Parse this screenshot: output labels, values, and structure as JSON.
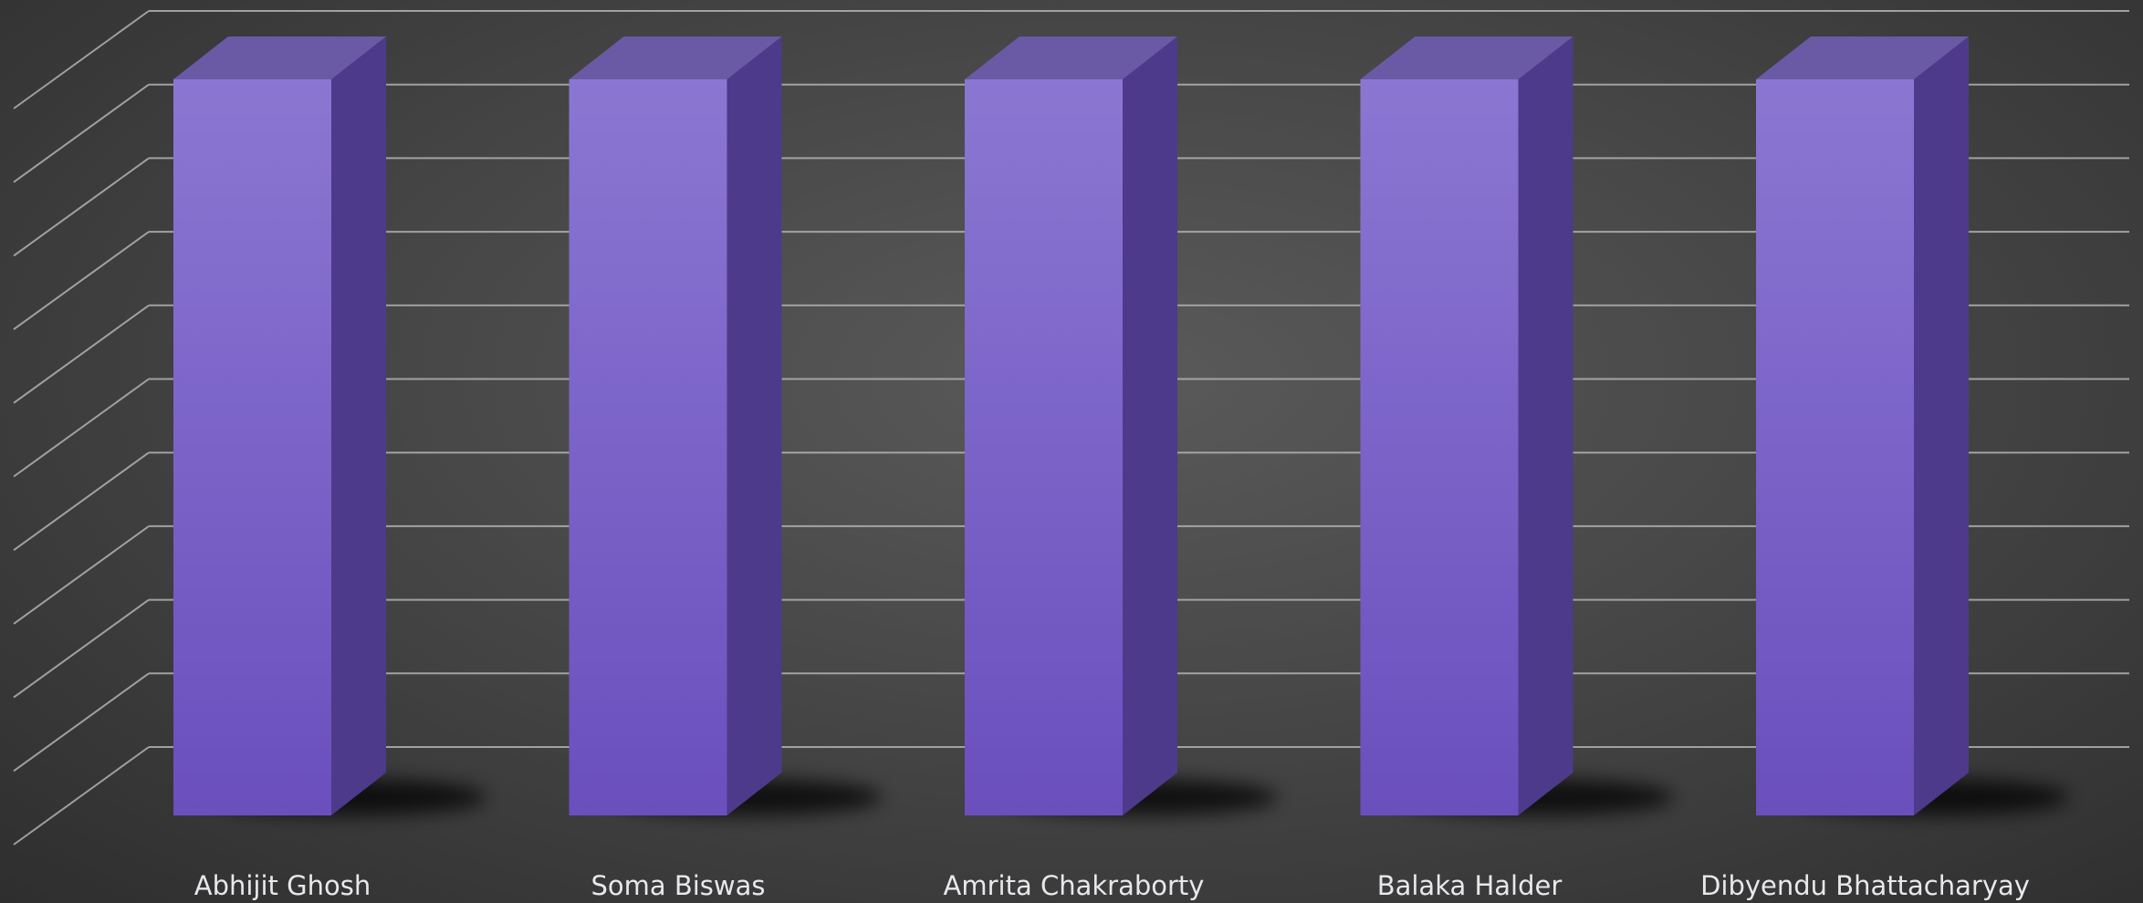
{
  "chart_data": {
    "type": "bar",
    "style": "3d-column",
    "categories": [
      "Abhijit Ghosh",
      "Soma Biswas",
      "Amrita Chakraborty",
      "Balaka Halder",
      "Dibyendu Bhattacharyay"
    ],
    "values": [
      10,
      10,
      10,
      10,
      10
    ],
    "ylim": [
      0,
      10
    ],
    "gridline_count": 10,
    "grid": true,
    "legend": "none",
    "title": "",
    "xlabel": "",
    "ylabel": "",
    "colors": {
      "bar_front_top": "#8b77d2",
      "bar_front_bottom": "#6a4fbd",
      "bar_side": "#4e3a8a",
      "bar_top": "#6a5aa6",
      "gridline": "#b3b3b3",
      "label": "#e8e8ec"
    }
  }
}
